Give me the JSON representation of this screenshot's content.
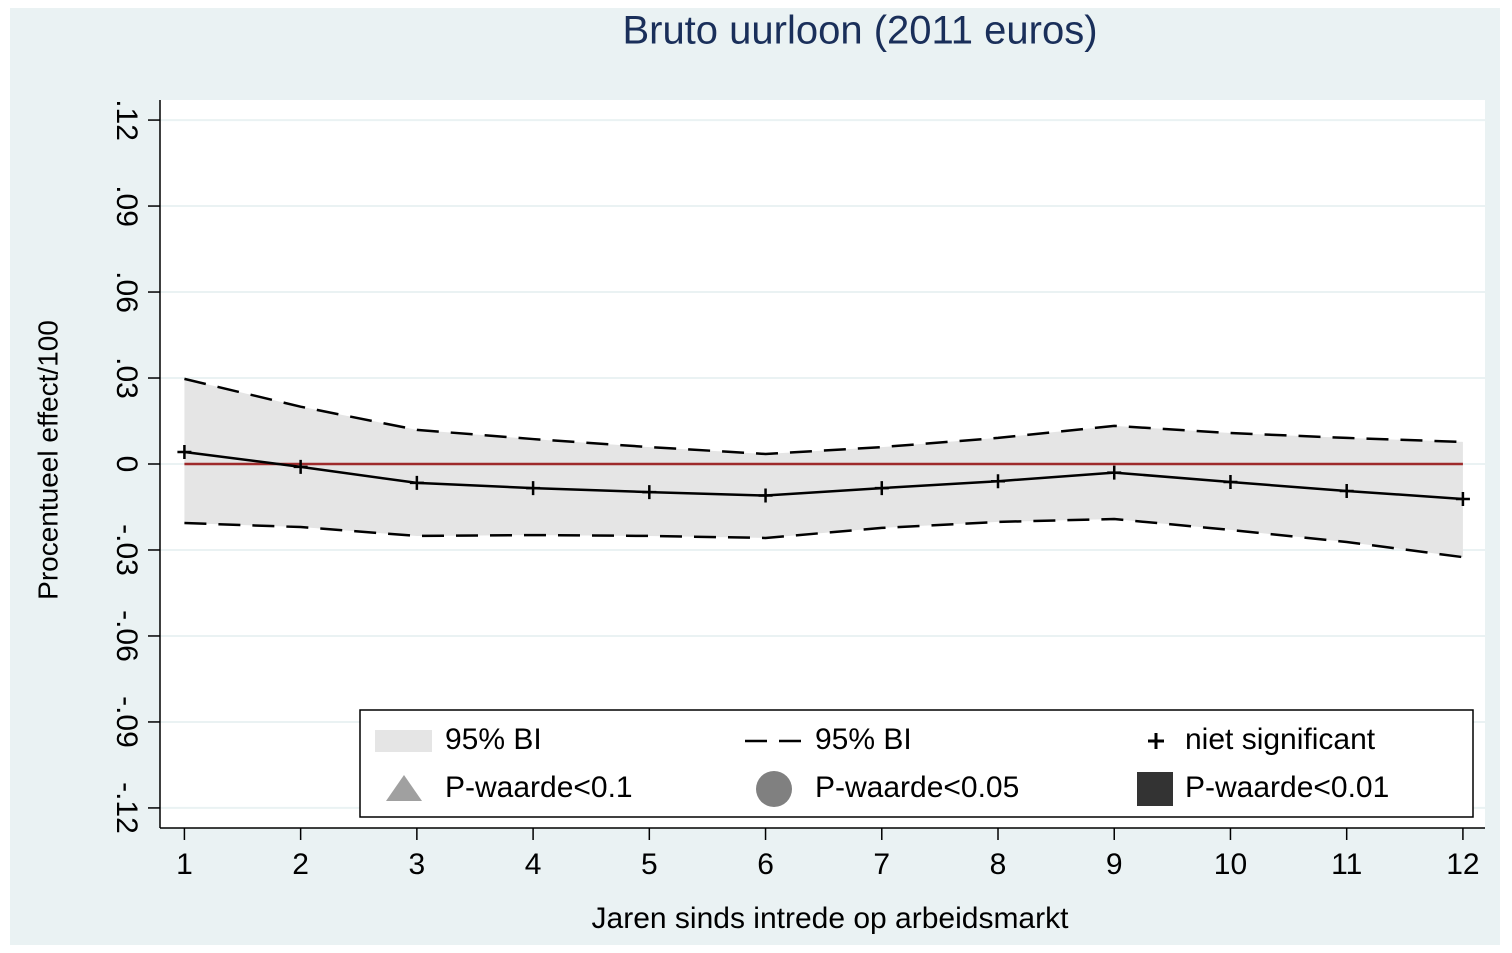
{
  "chart_data": {
    "type": "line",
    "title": "Bruto uurloon (2011 euros)",
    "xlabel": "Jaren sinds intrede op arbeidsmarkt",
    "ylabel": "Procentueel effect/100",
    "x": [
      1,
      2,
      3,
      4,
      5,
      6,
      7,
      8,
      9,
      10,
      11,
      12
    ],
    "values": [
      0.0042,
      -0.001,
      -0.0066,
      -0.0084,
      -0.0098,
      -0.011,
      -0.0084,
      -0.006,
      -0.003,
      -0.0063,
      -0.0094,
      -0.0122
    ],
    "ci_upper": [
      0.0297,
      0.02,
      0.0119,
      0.0087,
      0.0059,
      0.0035,
      0.0059,
      0.0091,
      0.0133,
      0.0108,
      0.0091,
      0.0077
    ],
    "ci_lower": [
      -0.0206,
      -0.022,
      -0.0251,
      -0.0248,
      -0.0251,
      -0.0258,
      -0.0223,
      -0.0202,
      -0.0192,
      -0.023,
      -0.0272,
      -0.0325
    ],
    "color": "#000000",
    "band_color": "#e5e5e5",
    "refline": 0,
    "refline_color": "#9e2a2b",
    "xlim": [
      0.79,
      12.19
    ],
    "ylim": [
      -0.127,
      0.127
    ],
    "xticks": [
      1,
      2,
      3,
      4,
      5,
      6,
      7,
      8,
      9,
      10,
      11,
      12
    ],
    "yticks": [
      {
        "value": -0.12,
        "label": "-.12"
      },
      {
        "value": -0.09,
        "label": "-.09"
      },
      {
        "value": -0.06,
        "label": "-.06"
      },
      {
        "value": -0.03,
        "label": "-.03"
      },
      0,
      {
        "value": 0.03,
        "label": ".03"
      },
      {
        "value": 0.06,
        "label": ".06"
      },
      {
        "value": 0.09,
        "label": ".09"
      },
      {
        "value": 0.12,
        "label": ".12"
      }
    ],
    "grid": true,
    "legend_position": "bottom",
    "legend": [
      {
        "name": "95% BI",
        "symbol": "area",
        "color": "#e5e5e5"
      },
      {
        "name": "95% BI",
        "symbol": "dash",
        "color": "#000000"
      },
      {
        "name": "niet significant",
        "symbol": "plus",
        "color": "#000000"
      },
      {
        "name": "P-waarde<0.1",
        "symbol": "triangle",
        "color": "#a0a0a0"
      },
      {
        "name": "P-waarde<0.05",
        "symbol": "circle",
        "color": "#808080"
      },
      {
        "name": "P-waarde<0.01",
        "symbol": "square",
        "color": "#333333"
      }
    ]
  }
}
